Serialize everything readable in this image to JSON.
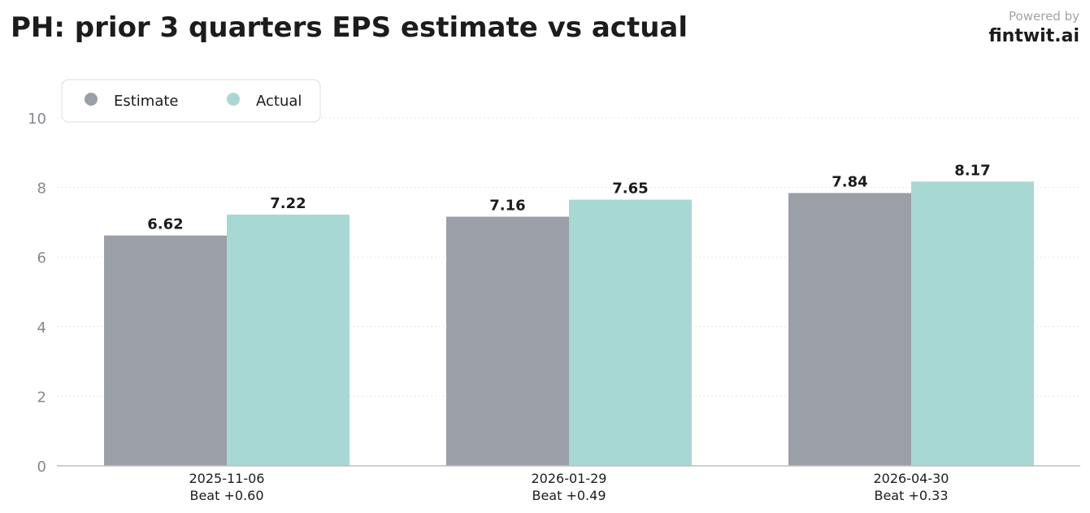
{
  "header": {
    "title": "PH: prior 3 quarters EPS estimate vs actual",
    "powered_by": "Powered by",
    "brand": "fintwit.ai"
  },
  "chart_data": {
    "type": "bar",
    "title": "PH: prior 3 quarters EPS estimate vs actual",
    "xlabel": "",
    "ylabel": "",
    "categories": [
      "2025-11-06",
      "2026-01-29",
      "2026-04-30"
    ],
    "category_sublabels": [
      "Beat +0.60",
      "Beat +0.49",
      "Beat +0.33"
    ],
    "series": [
      {
        "name": "Estimate",
        "values": [
          6.62,
          7.16,
          7.84
        ],
        "color": "#9b9fa7"
      },
      {
        "name": "Actual",
        "values": [
          7.22,
          7.65,
          8.17
        ],
        "color": "#a8d8d4"
      }
    ],
    "ylim": [
      0,
      10
    ],
    "yticks": [
      "0",
      "2",
      "4",
      "6",
      "8",
      "10"
    ],
    "grid": true,
    "legend_position": "top-left",
    "data_labels": true
  }
}
